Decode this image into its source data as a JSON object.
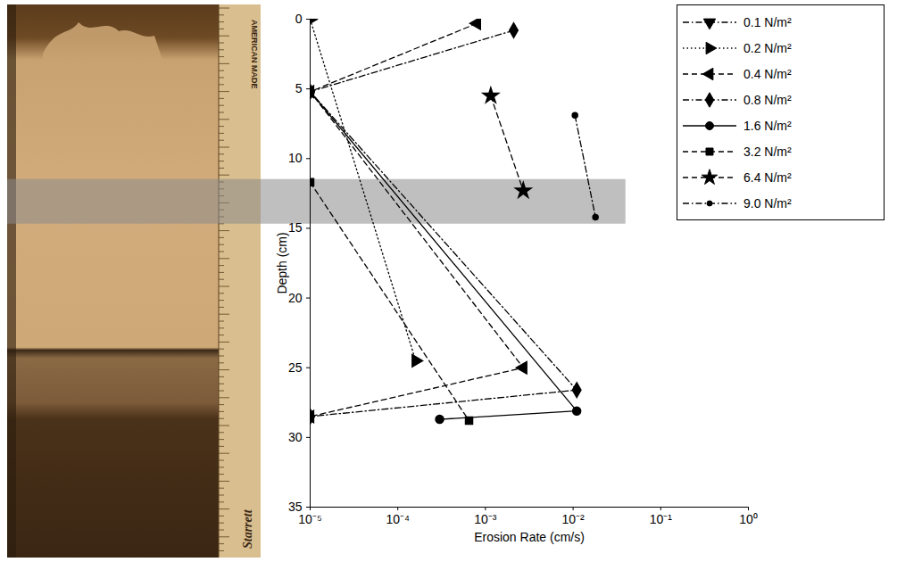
{
  "chart_data": {
    "type": "line",
    "log": "x",
    "grid": false,
    "legend": "top-right",
    "xlabel": "Erosion Rate (cm/s)",
    "ylabel": "Depth (cm)",
    "xlim": [
      1e-05,
      1
    ],
    "ylim": [
      0,
      35
    ],
    "xticks": [
      {
        "value": 1e-05,
        "label": "10⁻⁵"
      },
      {
        "value": 0.0001,
        "label": "10⁻⁴"
      },
      {
        "value": 0.001,
        "label": "10⁻³"
      },
      {
        "value": 0.01,
        "label": "10⁻²"
      },
      {
        "value": 0.1,
        "label": "10⁻¹"
      },
      {
        "value": 1,
        "label": "10⁰"
      }
    ],
    "yticks": [
      0,
      5,
      10,
      15,
      20,
      25,
      30,
      35
    ],
    "highlight_depth": [
      11.5,
      14.7
    ],
    "highlight_erosion_rate_max": 0.04,
    "photo_labels": [
      "AMERICAN MADE",
      "Starrett"
    ],
    "series": [
      {
        "name": "0.1 N/m²",
        "color": "#000000",
        "marker": "triangle-down",
        "line_style": "dashdot",
        "x": [],
        "values": []
      },
      {
        "name": "0.2 N/m²",
        "color": "#000000",
        "marker": "triangle-right",
        "line_style": "dotted",
        "x": [
          1e-05,
          0.00016
        ],
        "values": [
          0,
          24.5
        ]
      },
      {
        "name": "0.4 N/m²",
        "color": "#000000",
        "marker": "triangle-left",
        "line_style": "dashed",
        "x": [
          0.0008,
          1e-05,
          0.0027,
          1e-05
        ],
        "values": [
          0.3,
          5.2,
          25,
          28.5
        ]
      },
      {
        "name": "0.8 N/m²",
        "color": "#000000",
        "marker": "diamond",
        "line_style": "dashdot",
        "x": [
          0.0021,
          1e-05,
          0.011,
          1e-05
        ],
        "values": [
          0.8,
          5.2,
          26.6,
          28.5
        ]
      },
      {
        "name": "1.6 N/m²",
        "color": "#000000",
        "marker": "circle",
        "line_style": "solid",
        "x": [
          1e-05,
          0.011,
          0.0003
        ],
        "values": [
          5.2,
          28.1,
          28.7
        ]
      },
      {
        "name": "3.2 N/m²",
        "color": "#000000",
        "marker": "square",
        "line_style": "dashed",
        "x": [
          1e-05,
          0.00065
        ],
        "values": [
          11.7,
          28.8
        ]
      },
      {
        "name": "6.4 N/m²",
        "color": "#000000",
        "marker": "star",
        "line_style": "dashed",
        "x": [
          0.00115,
          0.0027
        ],
        "values": [
          5.5,
          12.3
        ]
      },
      {
        "name": "9.0 N/m²",
        "color": "#000000",
        "marker": "point",
        "line_style": "dashdot",
        "x": [
          0.0105,
          0.018
        ],
        "values": [
          6.9,
          14.2
        ]
      }
    ]
  }
}
